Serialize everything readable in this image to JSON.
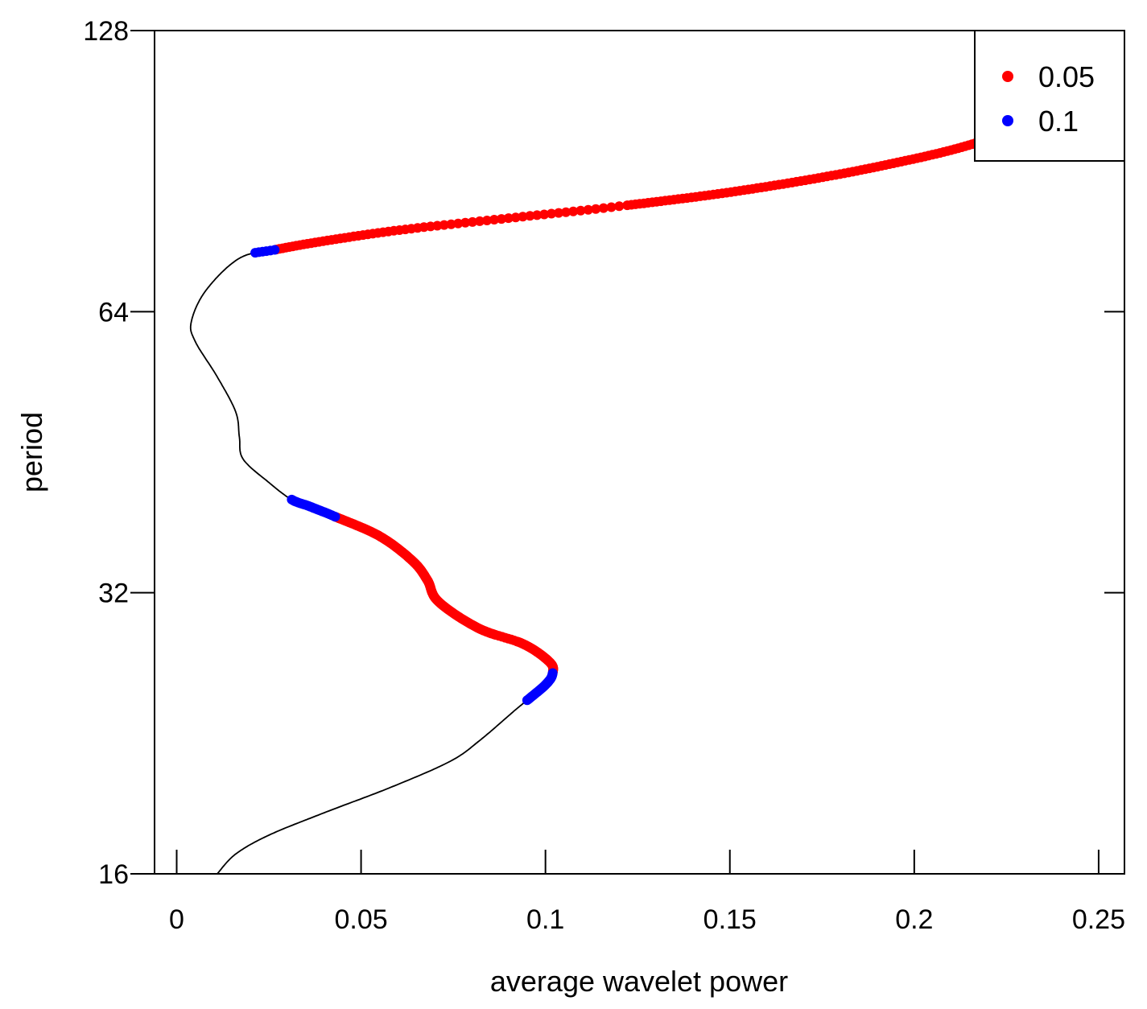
{
  "chart_data": {
    "type": "scatter",
    "xlabel": "average wavelet power",
    "ylabel": "period",
    "xlim": [
      -0.006,
      0.257
    ],
    "ylim": [
      16,
      128
    ],
    "y_scale": "log2",
    "x_ticks": [
      0,
      0.05,
      0.1,
      0.15,
      0.2,
      0.25
    ],
    "x_tick_labels": [
      "0",
      "0.05",
      "0.1",
      "0.15",
      "0.2",
      "0.25"
    ],
    "y_ticks": [
      16,
      32,
      64,
      128
    ],
    "y_tick_labels": [
      "16",
      "32",
      "64",
      "128"
    ],
    "legend": {
      "position": "top-right",
      "entries": [
        {
          "label": "0.05",
          "color": "#ff0000"
        },
        {
          "label": "0.1",
          "color": "#0000ff"
        }
      ]
    },
    "line": {
      "color": "#000000",
      "points": [
        [
          0.011,
          16.0
        ],
        [
          0.016,
          16.8
        ],
        [
          0.025,
          17.6
        ],
        [
          0.04,
          18.6
        ],
        [
          0.058,
          19.8
        ],
        [
          0.074,
          21.1
        ],
        [
          0.082,
          22.2
        ],
        [
          0.092,
          24.0
        ],
        [
          0.1,
          25.5
        ],
        [
          0.102,
          26.3
        ],
        [
          0.101,
          27.0
        ],
        [
          0.094,
          28.2
        ],
        [
          0.082,
          29.3
        ],
        [
          0.071,
          31.3
        ],
        [
          0.068,
          33.0
        ],
        [
          0.064,
          34.6
        ],
        [
          0.055,
          36.8
        ],
        [
          0.043,
          38.6
        ],
        [
          0.036,
          39.6
        ],
        [
          0.031,
          40.3
        ],
        [
          0.025,
          42.0
        ],
        [
          0.018,
          44.5
        ],
        [
          0.017,
          47.0
        ],
        [
          0.016,
          50.0
        ],
        [
          0.011,
          54.5
        ],
        [
          0.005,
          59.5
        ],
        [
          0.004,
          62.5
        ],
        [
          0.008,
          67.5
        ],
        [
          0.017,
          73.0
        ],
        [
          0.027,
          74.6
        ],
        [
          0.042,
          76.4
        ],
        [
          0.062,
          78.4
        ],
        [
          0.09,
          80.6
        ],
        [
          0.12,
          83.0
        ],
        [
          0.155,
          86.5
        ],
        [
          0.19,
          91.5
        ],
        [
          0.22,
          98.0
        ],
        [
          0.24,
          108.0
        ],
        [
          0.248,
          118.0
        ],
        [
          0.249,
          124.0
        ]
      ]
    },
    "series": [
      {
        "name": "0.05",
        "color": "#ff0000",
        "period_range": [
          [
            26.3,
            38.6
          ],
          [
            74.6,
            124.0
          ]
        ]
      },
      {
        "name": "0.1",
        "color": "#0000ff",
        "period_range": [
          [
            24.5,
            26.3
          ],
          [
            38.6,
            40.3
          ],
          [
            74.0,
            74.6
          ]
        ]
      }
    ]
  }
}
